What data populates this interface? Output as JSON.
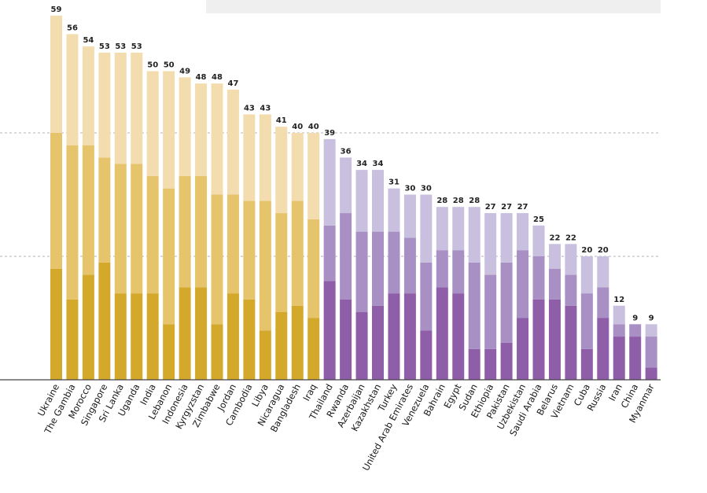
{
  "chart_data": {
    "type": "bar",
    "stacked": true,
    "ylim": [
      0,
      60
    ],
    "gridlines": [
      20,
      40
    ],
    "categories": [
      "Ukraine",
      "The Gambia",
      "Morocco",
      "Singapore",
      "Sri Lanka",
      "Uganda",
      "India",
      "Lebanon",
      "Indonesia",
      "Kyrgyzstan",
      "Zimbabwe",
      "Jordan",
      "Cambodia",
      "Libya",
      "Nicaragua",
      "Bangladesh",
      "Iraq",
      "Thailand",
      "Rwanda",
      "Azerbaijan",
      "Kazakhstan",
      "Turkey",
      "United Arab Emirates",
      "Venezuela",
      "Bahrain",
      "Egypt",
      "Sudan",
      "Ethiopia",
      "Pakistan",
      "Uzbekistan",
      "Saudi Arabia",
      "Belarus",
      "Vietnam",
      "Cuba",
      "Russia",
      "Iran",
      "China",
      "Myanmar"
    ],
    "totals": [
      59,
      56,
      54,
      53,
      53,
      53,
      50,
      50,
      49,
      48,
      48,
      47,
      43,
      43,
      41,
      40,
      40,
      39,
      36,
      34,
      34,
      31,
      30,
      30,
      28,
      28,
      28,
      27,
      27,
      27,
      25,
      22,
      22,
      20,
      20,
      12,
      9,
      9
    ],
    "series": [
      {
        "values": [
          18,
          13,
          17,
          19,
          14,
          14,
          14,
          9,
          15,
          15,
          9,
          14,
          13,
          8,
          11,
          12,
          10,
          16,
          13,
          11,
          12,
          14,
          14,
          8,
          15,
          14,
          5,
          5,
          6,
          10,
          13,
          13,
          12,
          5,
          10,
          7,
          7,
          2
        ]
      },
      {
        "values": [
          22,
          25,
          21,
          17,
          21,
          21,
          19,
          22,
          18,
          18,
          21,
          16,
          16,
          21,
          16,
          17,
          16,
          9,
          14,
          13,
          12,
          10,
          9,
          11,
          6,
          7,
          14,
          12,
          13,
          11,
          7,
          5,
          5,
          9,
          5,
          2,
          2,
          5
        ]
      },
      {
        "values": [
          19,
          18,
          16,
          17,
          18,
          18,
          17,
          19,
          16,
          15,
          18,
          17,
          14,
          14,
          14,
          11,
          14,
          14,
          9,
          10,
          10,
          7,
          7,
          11,
          7,
          7,
          9,
          10,
          8,
          6,
          5,
          4,
          5,
          6,
          5,
          3,
          0,
          2
        ]
      }
    ],
    "group_split_index": 17,
    "colors": {
      "group1": [
        "#d4a92b",
        "#e6c46c",
        "#f3dcae"
      ],
      "group2": [
        "#8f5ea8",
        "#a890c4",
        "#c9bfde"
      ],
      "gridline": "#9a9a9a",
      "axis": "#444444",
      "label_text": "#1a1a1a",
      "total_text": "#222222",
      "top_banner": "#efefef"
    }
  }
}
